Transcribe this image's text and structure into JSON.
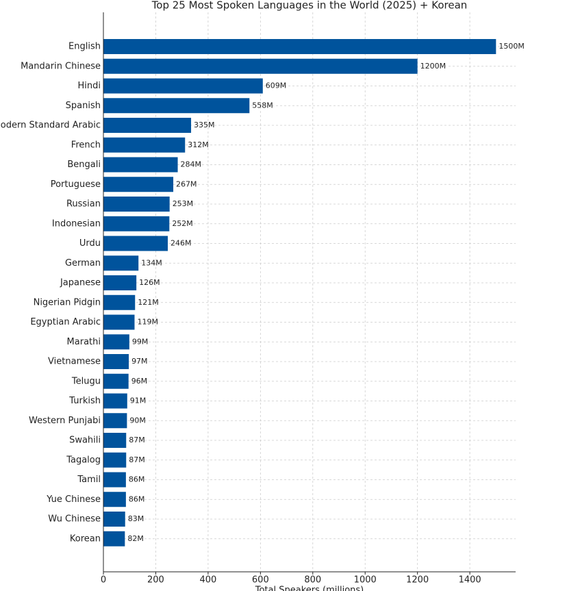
{
  "chart_data": {
    "type": "bar",
    "orientation": "horizontal",
    "title": "Top 25 Most Spoken Languages in the World (2025) + Korean",
    "x_label": "Total Speakers (millions)",
    "categories": [
      "English",
      "Mandarin Chinese",
      "Hindi",
      "Spanish",
      "Modern Standard Arabic",
      "French",
      "Bengali",
      "Portuguese",
      "Russian",
      "Indonesian",
      "Urdu",
      "German",
      "Japanese",
      "Nigerian Pidgin",
      "Egyptian Arabic",
      "Marathi",
      "Vietnamese",
      "Telugu",
      "Turkish",
      "Western Punjabi",
      "Swahili",
      "Tagalog",
      "Tamil",
      "Yue Chinese",
      "Wu Chinese",
      "Korean"
    ],
    "values": [
      1500,
      1200,
      609,
      558,
      335,
      312,
      284,
      267,
      253,
      252,
      246,
      134,
      126,
      121,
      119,
      99,
      97,
      96,
      91,
      90,
      87,
      87,
      86,
      86,
      83,
      82
    ],
    "value_labels": [
      "1500M",
      "1200M",
      "609M",
      "558M",
      "335M",
      "312M",
      "284M",
      "267M",
      "253M",
      "252M",
      "246M",
      "134M",
      "126M",
      "121M",
      "119M",
      "99M",
      "97M",
      "96M",
      "91M",
      "90M",
      "87M",
      "87M",
      "86M",
      "86M",
      "83M",
      "82M"
    ],
    "color": "#00539c",
    "xlim": [
      0,
      1575
    ],
    "xticks": [
      0,
      200,
      400,
      600,
      800,
      1000,
      1200,
      1400
    ],
    "grid": true
  }
}
